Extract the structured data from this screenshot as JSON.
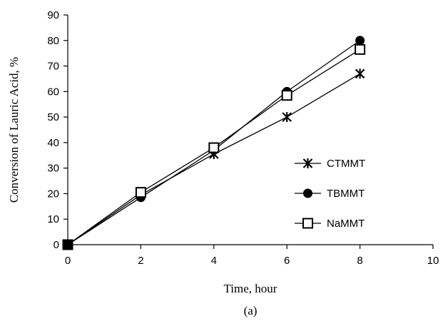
{
  "chart_data": {
    "type": "line",
    "title": "",
    "caption": "(a)",
    "xlabel": "Time, hour",
    "ylabel": "Conversion of Lauric Acid, %",
    "xlim": [
      0,
      10
    ],
    "ylim": [
      0,
      90
    ],
    "xticks": [
      0,
      2,
      4,
      6,
      8,
      10
    ],
    "yticks": [
      0,
      10,
      20,
      30,
      40,
      50,
      60,
      70,
      80,
      90
    ],
    "grid": false,
    "legend_position": "right",
    "series": [
      {
        "name": "CTMMT",
        "marker": "asterisk",
        "x": [
          0,
          2,
          4,
          6,
          8
        ],
        "y": [
          0,
          19.5,
          35.5,
          50,
          67
        ]
      },
      {
        "name": "TBMMT",
        "marker": "filled-circle",
        "x": [
          0,
          2,
          4,
          6,
          8
        ],
        "y": [
          0,
          18.5,
          37,
          60,
          80
        ]
      },
      {
        "name": "NaMMT",
        "marker": "open-square",
        "x": [
          0,
          2,
          4,
          6,
          8
        ],
        "y": [
          0,
          20.5,
          38,
          58.5,
          76.5
        ]
      }
    ]
  }
}
